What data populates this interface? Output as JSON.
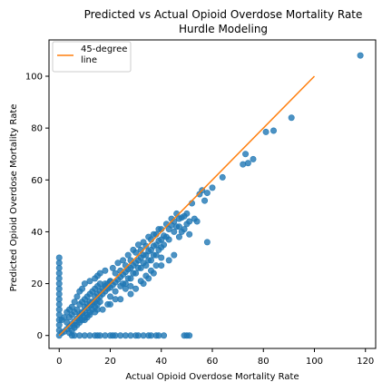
{
  "chart_data": {
    "type": "scatter",
    "title_line1": "Predicted vs Actual Opioid Overdose Mortality Rate",
    "title_line2": "Hurdle Modeling",
    "xlabel": "Actual Opioid Overdose Mortality Rate",
    "ylabel": "Predicted Opioid Overdose Mortality Rate",
    "xlim": [
      -4,
      124
    ],
    "ylim": [
      -5,
      114
    ],
    "xticks": [
      0,
      20,
      40,
      60,
      80,
      100,
      120
    ],
    "yticks": [
      0,
      20,
      40,
      60,
      80,
      100
    ],
    "grid": false,
    "legend": {
      "placement": "top-left",
      "line1": "45-degree",
      "line2": "line"
    },
    "colors": {
      "scatter": "#1f77b4",
      "line": "#ff7f0e"
    },
    "line45": {
      "x": [
        0,
        100
      ],
      "y": [
        0,
        100
      ]
    },
    "series": [
      {
        "values": [
          [
            118,
            108
          ],
          [
            91,
            84
          ],
          [
            84,
            79
          ],
          [
            81,
            78.5
          ],
          [
            76,
            68
          ],
          [
            73,
            70
          ],
          [
            72,
            66
          ],
          [
            74,
            66.5
          ],
          [
            64,
            61
          ],
          [
            60,
            57
          ],
          [
            56,
            56
          ],
          [
            55,
            54.5
          ],
          [
            58,
            55
          ],
          [
            57,
            52
          ],
          [
            52,
            51
          ],
          [
            50,
            47
          ],
          [
            49,
            46
          ],
          [
            48,
            45.5
          ],
          [
            47,
            45
          ],
          [
            46,
            42
          ],
          [
            45,
            44
          ],
          [
            44,
            42.5
          ],
          [
            43,
            41
          ],
          [
            42,
            38
          ],
          [
            41,
            38.5
          ],
          [
            40,
            37
          ],
          [
            39,
            36.5
          ],
          [
            38,
            35
          ],
          [
            37,
            34.5
          ],
          [
            36,
            33
          ],
          [
            35,
            32.5
          ],
          [
            34,
            31
          ],
          [
            33,
            31
          ],
          [
            32,
            30
          ],
          [
            31,
            29
          ],
          [
            30,
            28
          ],
          [
            29,
            27
          ],
          [
            28,
            26
          ],
          [
            27,
            25.5
          ],
          [
            26,
            24.5
          ],
          [
            25,
            23.5
          ],
          [
            24,
            22.5
          ],
          [
            23,
            21.5
          ],
          [
            22,
            20.5
          ],
          [
            21,
            19.5
          ],
          [
            20,
            18.5
          ],
          [
            19,
            18
          ],
          [
            18,
            17
          ],
          [
            17,
            16
          ],
          [
            16,
            15
          ],
          [
            15,
            14
          ],
          [
            14,
            13
          ],
          [
            13,
            12
          ],
          [
            12,
            11.5
          ],
          [
            11,
            10.5
          ],
          [
            10,
            9.5
          ],
          [
            9,
            8.5
          ],
          [
            8,
            7.5
          ],
          [
            7,
            6.5
          ],
          [
            6,
            5.5
          ],
          [
            5,
            4.5
          ],
          [
            4,
            3.5
          ],
          [
            3,
            2.5
          ],
          [
            2,
            1.5
          ],
          [
            1,
            1
          ],
          [
            49,
            41
          ],
          [
            50,
            43
          ],
          [
            51,
            44
          ],
          [
            53,
            45
          ],
          [
            54,
            44
          ],
          [
            48,
            40
          ],
          [
            51,
            39
          ],
          [
            47,
            38
          ],
          [
            58,
            36
          ],
          [
            45,
            31
          ],
          [
            43,
            29
          ],
          [
            40,
            27
          ],
          [
            37,
            24
          ],
          [
            35,
            22
          ],
          [
            33,
            20
          ],
          [
            30,
            18
          ],
          [
            28,
            16
          ],
          [
            24,
            14
          ],
          [
            20,
            12
          ],
          [
            17,
            10
          ],
          [
            14,
            9
          ],
          [
            11,
            8
          ],
          [
            8,
            6
          ],
          [
            6,
            4
          ],
          [
            40,
            30
          ],
          [
            38,
            27
          ],
          [
            36,
            25
          ],
          [
            34,
            23
          ],
          [
            32,
            21
          ],
          [
            28,
            19
          ],
          [
            26,
            18
          ],
          [
            22,
            14
          ],
          [
            19,
            12
          ],
          [
            15,
            10
          ],
          [
            12,
            8
          ],
          [
            10,
            7
          ],
          [
            15,
            23
          ],
          [
            16,
            24
          ],
          [
            18,
            25
          ],
          [
            14,
            22
          ],
          [
            12,
            21
          ],
          [
            10,
            20
          ],
          [
            9,
            18
          ],
          [
            8,
            17
          ],
          [
            7,
            15
          ],
          [
            6,
            13
          ],
          [
            5,
            11
          ],
          [
            4,
            10
          ],
          [
            3,
            9
          ],
          [
            2,
            7
          ],
          [
            1,
            6
          ],
          [
            0,
            0
          ],
          [
            0,
            2
          ],
          [
            0,
            4
          ],
          [
            0,
            6
          ],
          [
            0,
            8
          ],
          [
            0,
            10
          ],
          [
            0,
            12
          ],
          [
            0,
            14
          ],
          [
            0,
            16
          ],
          [
            0,
            18
          ],
          [
            0,
            20
          ],
          [
            0,
            22
          ],
          [
            0,
            24
          ],
          [
            0,
            26
          ],
          [
            0,
            28
          ],
          [
            0,
            30
          ],
          [
            5,
            0
          ],
          [
            6,
            0
          ],
          [
            8,
            0
          ],
          [
            10,
            0
          ],
          [
            12,
            0
          ],
          [
            14,
            0
          ],
          [
            15,
            0
          ],
          [
            16,
            0
          ],
          [
            18,
            0
          ],
          [
            20,
            0
          ],
          [
            21,
            0
          ],
          [
            22,
            0
          ],
          [
            24,
            0
          ],
          [
            26,
            0
          ],
          [
            28,
            0
          ],
          [
            30,
            0
          ],
          [
            31,
            0
          ],
          [
            33,
            0
          ],
          [
            35,
            0
          ],
          [
            36,
            0
          ],
          [
            38,
            0
          ],
          [
            39,
            0
          ],
          [
            41,
            0
          ],
          [
            49,
            0
          ],
          [
            50,
            0
          ],
          [
            51,
            0
          ],
          [
            18,
            20
          ],
          [
            20,
            21
          ],
          [
            22,
            24
          ],
          [
            24,
            25
          ],
          [
            26,
            27
          ],
          [
            28,
            29
          ],
          [
            30,
            32
          ],
          [
            32,
            33
          ],
          [
            34,
            34.5
          ],
          [
            36,
            37
          ],
          [
            38,
            39
          ],
          [
            40,
            41
          ],
          [
            42,
            43
          ],
          [
            44,
            45
          ],
          [
            46,
            47
          ],
          [
            25,
            20
          ],
          [
            27,
            22
          ],
          [
            29,
            24
          ],
          [
            31,
            26
          ],
          [
            33,
            28
          ],
          [
            35,
            29
          ],
          [
            37,
            31
          ],
          [
            39,
            33
          ],
          [
            41,
            35
          ],
          [
            43,
            37
          ],
          [
            45,
            40
          ],
          [
            47,
            42
          ],
          [
            8,
            8
          ],
          [
            9,
            9
          ],
          [
            10,
            11
          ],
          [
            11,
            12
          ],
          [
            12,
            13
          ],
          [
            13,
            13
          ],
          [
            14,
            15
          ],
          [
            15,
            16
          ],
          [
            16,
            17
          ],
          [
            17,
            18
          ],
          [
            18,
            19
          ],
          [
            19,
            20
          ],
          [
            20,
            21
          ],
          [
            3,
            5
          ],
          [
            4,
            7
          ],
          [
            5,
            8
          ],
          [
            6,
            9
          ],
          [
            7,
            10
          ],
          [
            8,
            12
          ],
          [
            9,
            13
          ],
          [
            10,
            14
          ],
          [
            11,
            15
          ],
          [
            12,
            16
          ],
          [
            13,
            17
          ],
          [
            14,
            18
          ],
          [
            15,
            19
          ],
          [
            16,
            20
          ],
          [
            4,
            1
          ],
          [
            5,
            2
          ],
          [
            6,
            3
          ],
          [
            7,
            4
          ],
          [
            8,
            5
          ],
          [
            9,
            6
          ],
          [
            10,
            6
          ],
          [
            11,
            7
          ],
          [
            12,
            9
          ],
          [
            13,
            10
          ],
          [
            14,
            11
          ],
          [
            15,
            12
          ],
          [
            16,
            13
          ],
          [
            20,
            15
          ],
          [
            22,
            17
          ],
          [
            24,
            19
          ],
          [
            26,
            20
          ],
          [
            28,
            22
          ],
          [
            30,
            24
          ],
          [
            32,
            26
          ],
          [
            34,
            27
          ],
          [
            36,
            29
          ],
          [
            38,
            31
          ],
          [
            40,
            34
          ],
          [
            21,
            26
          ],
          [
            23,
            28
          ],
          [
            25,
            29
          ],
          [
            27,
            31
          ],
          [
            29,
            33
          ],
          [
            31,
            35
          ],
          [
            33,
            36
          ],
          [
            35,
            38
          ],
          [
            37,
            39
          ],
          [
            39,
            41
          ]
        ]
      }
    ]
  }
}
